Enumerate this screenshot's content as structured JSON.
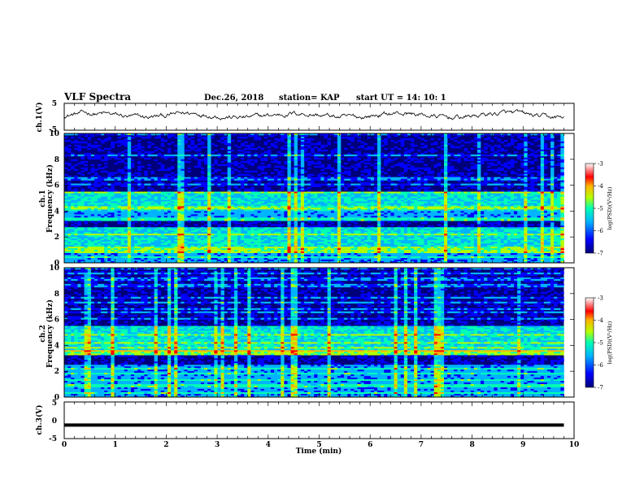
{
  "header": {
    "title": "VLF Spectra",
    "date": "Dec.26, 2018",
    "station": "station= KAP",
    "start": "start  UT =   14: 10: 1"
  },
  "colors": {
    "spectrum_scale": [
      "#00007a",
      "#0000ff",
      "#00b4ff",
      "#00ffb4",
      "#b4ff00",
      "#ffb400",
      "#ff0000",
      "#ffffff"
    ]
  },
  "chart_data": [
    {
      "type": "line",
      "panel": "ch1-waveform",
      "ylabel": "ch.1(V)",
      "yticks": [
        "5",
        "-5"
      ],
      "ylim": [
        -5,
        5
      ],
      "xlim": [
        0,
        10
      ],
      "description_values": "noisy waveform, mean about 0.5 V, amplitude about ±1.5 V, spanning 0–9.8 min"
    },
    {
      "type": "heatmap",
      "panel": "ch1-spectrogram",
      "ylabel": "ch.1 Frequency (kHz)",
      "yticks": [
        "0",
        "2",
        "4",
        "6",
        "8",
        "10"
      ],
      "ylim": [
        0,
        10
      ],
      "xlim": [
        0,
        9.8
      ],
      "colorbar": {
        "label": "log(PSD)(V²/Hz)",
        "ticks": [
          "-3",
          "-4",
          "-5",
          "-6",
          "-7"
        ],
        "range": [
          -7,
          -3
        ]
      },
      "bands_khz": [
        {
          "from": 0.0,
          "to": 0.8,
          "level": "mid"
        },
        {
          "from": 0.8,
          "to": 1.2,
          "level": "high"
        },
        {
          "from": 1.2,
          "to": 2.7,
          "level": "mid-high"
        },
        {
          "from": 2.7,
          "to": 3.2,
          "level": "low"
        },
        {
          "from": 3.2,
          "to": 4.0,
          "level": "mid"
        },
        {
          "from": 4.0,
          "to": 5.5,
          "level": "mid-high"
        },
        {
          "from": 5.5,
          "to": 10.0,
          "level": "low"
        }
      ]
    },
    {
      "type": "heatmap",
      "panel": "ch2-spectrogram",
      "ylabel": "ch.2 Frequency (kHz)",
      "yticks": [
        "0",
        "2",
        "4",
        "6",
        "8",
        "10"
      ],
      "ylim": [
        0,
        10
      ],
      "xlim": [
        0,
        9.8
      ],
      "colorbar": {
        "label": "log(PSD)(V²/Hz)",
        "ticks": [
          "-3",
          "-4",
          "-5",
          "-6",
          "-7"
        ],
        "range": [
          -7,
          -3
        ]
      },
      "bands_khz": [
        {
          "from": 0.0,
          "to": 1.0,
          "level": "mid"
        },
        {
          "from": 1.0,
          "to": 2.5,
          "level": "mid"
        },
        {
          "from": 2.5,
          "to": 3.2,
          "level": "low"
        },
        {
          "from": 3.2,
          "to": 3.6,
          "level": "high"
        },
        {
          "from": 3.6,
          "to": 5.5,
          "level": "mid-high"
        },
        {
          "from": 5.5,
          "to": 10.0,
          "level": "low"
        }
      ]
    },
    {
      "type": "line",
      "panel": "ch3-waveform",
      "ylabel": "ch.3(V)",
      "yticks": [
        "5",
        "0",
        "-5"
      ],
      "ylim": [
        -5,
        5
      ],
      "xlim": [
        0,
        10
      ],
      "constant_value": -1.3
    }
  ],
  "xaxis": {
    "label": "Time  (min)",
    "ticks": [
      "0",
      "1",
      "2",
      "3",
      "4",
      "5",
      "6",
      "7",
      "8",
      "9",
      "10"
    ]
  }
}
